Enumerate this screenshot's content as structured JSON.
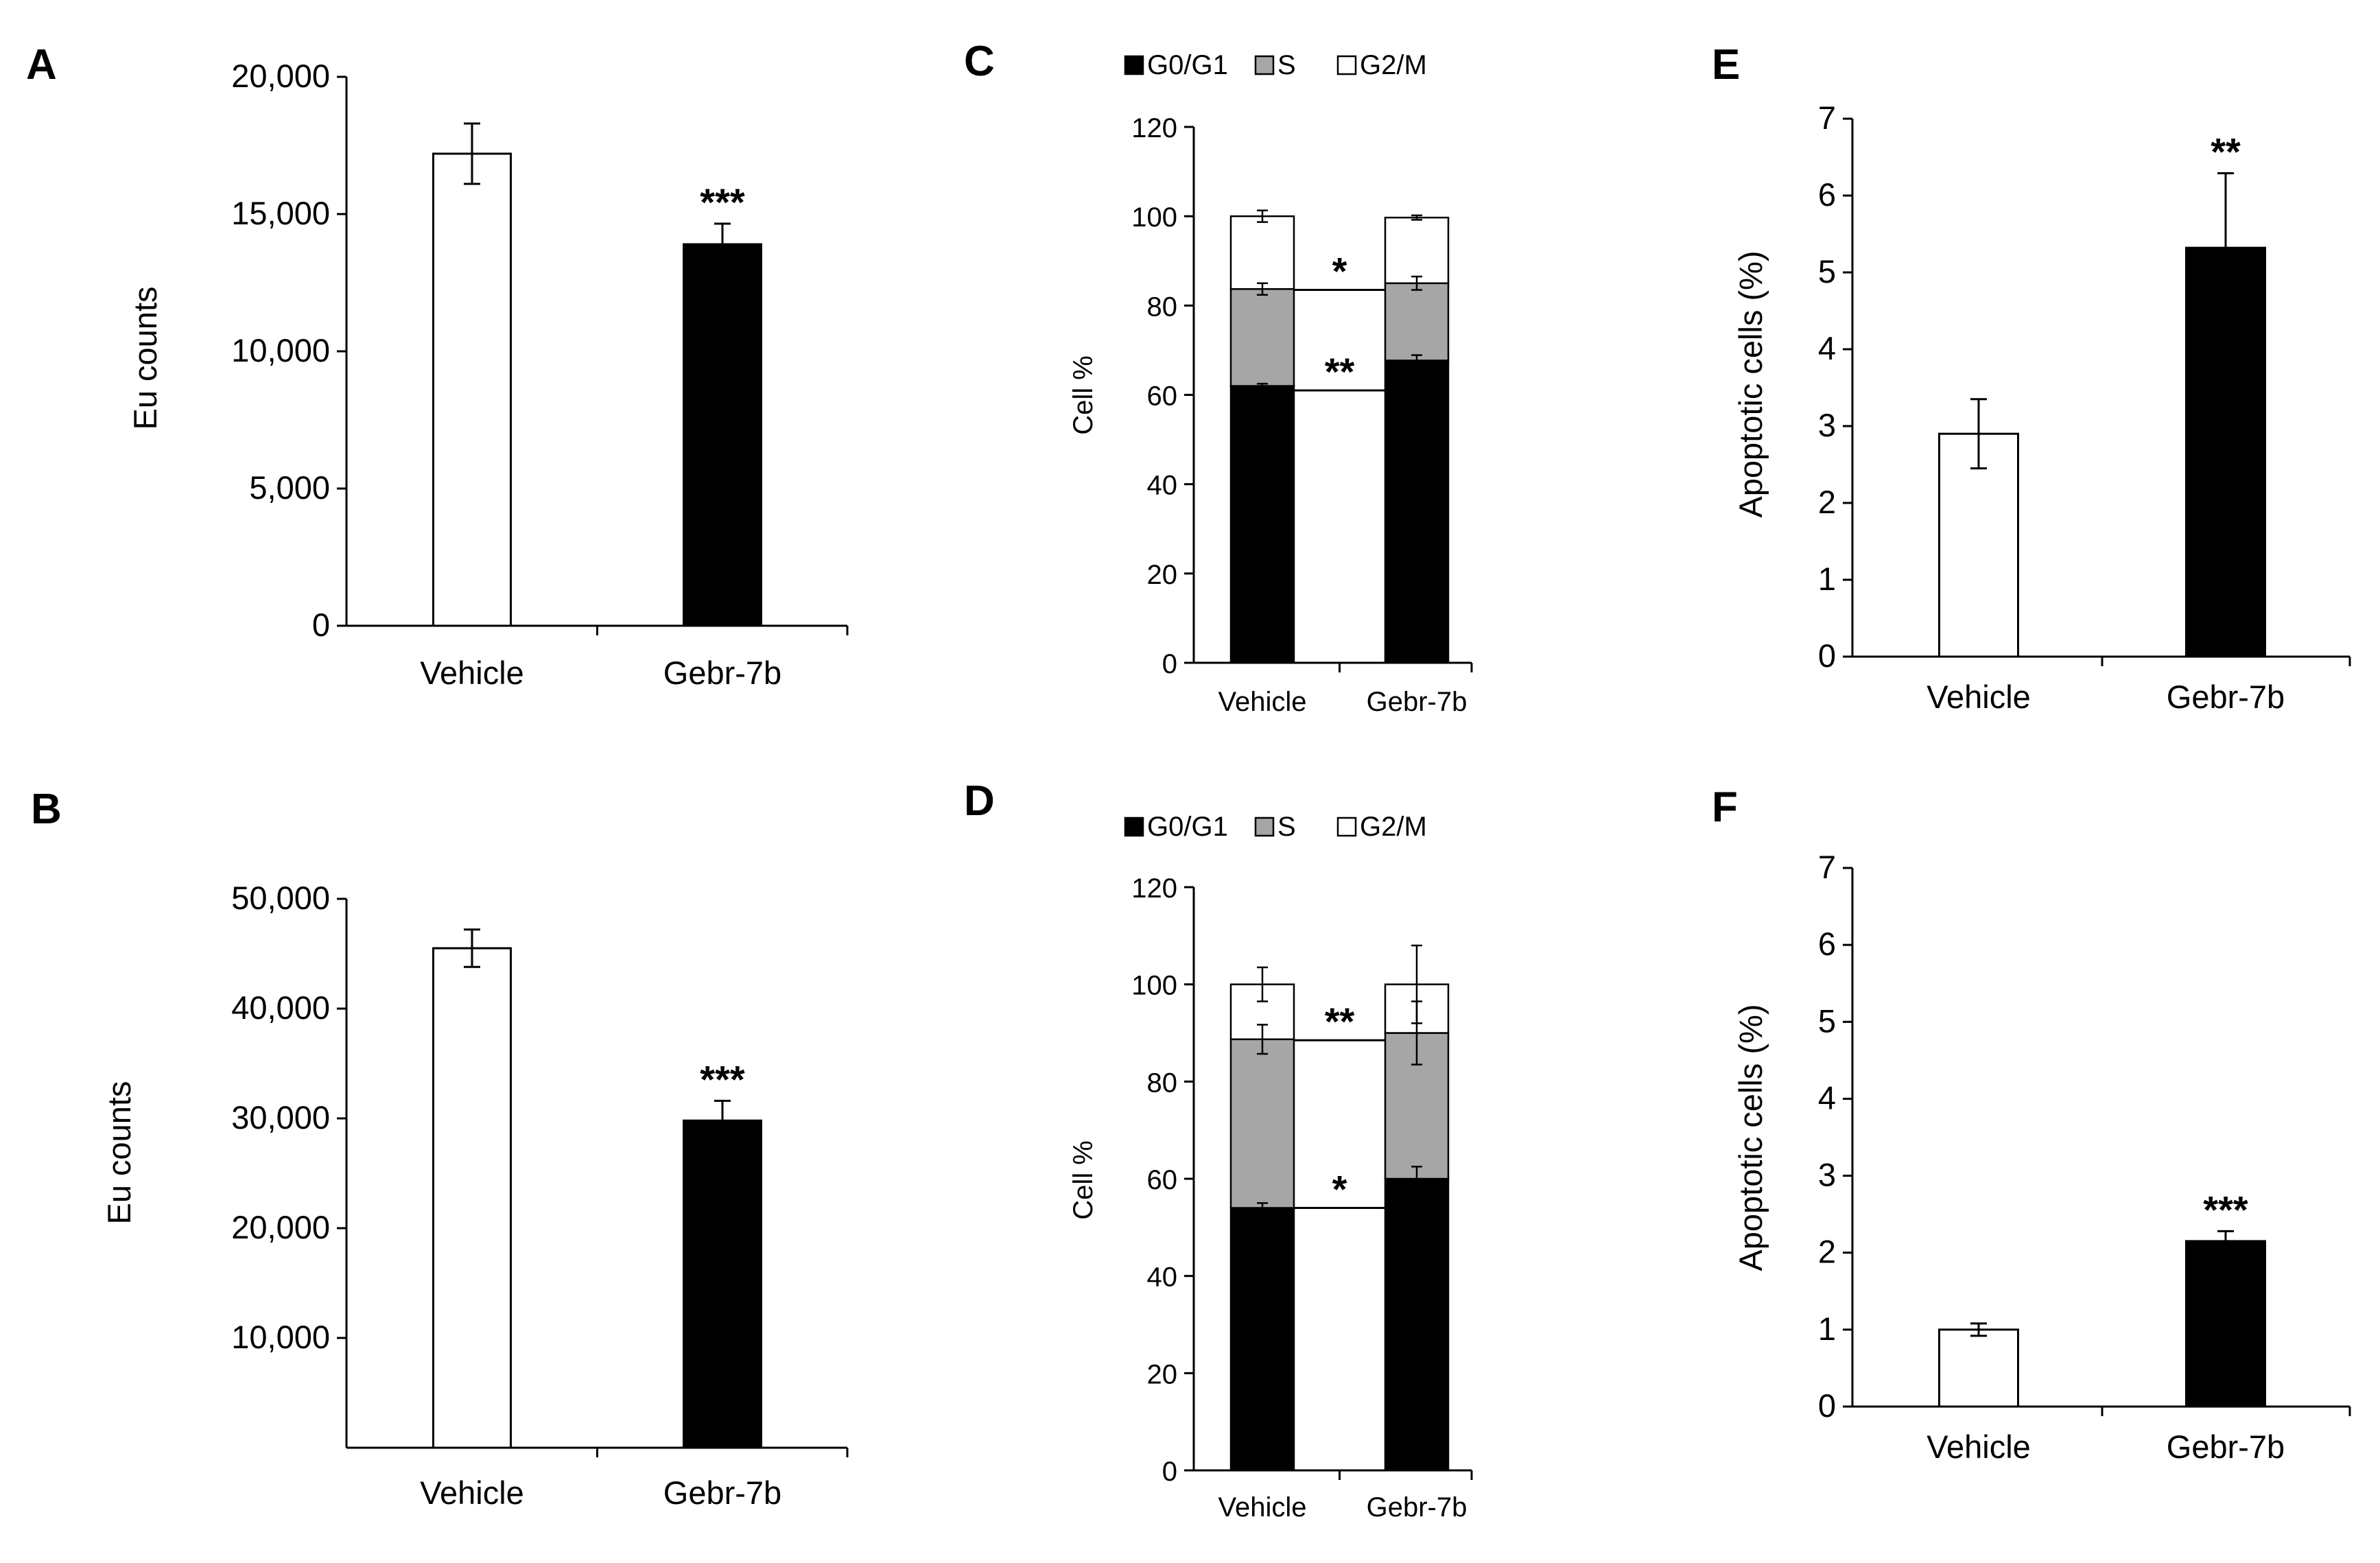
{
  "colors": {
    "control": "#ffffff",
    "treated": "#000000",
    "s_phase": "#a6a6a6",
    "axis": "#000000"
  },
  "chart_data": [
    {
      "panel": "A",
      "type": "bar",
      "categories": [
        "Vehicle",
        "Gebr-7b"
      ],
      "values": [
        17200,
        13900
      ],
      "errors": [
        1100,
        750
      ],
      "significance": [
        "",
        "***"
      ],
      "ylabel": "Eu counts",
      "ylim": [
        0,
        20000
      ],
      "ticks": [
        0,
        5000,
        10000,
        15000,
        20000
      ],
      "tick_labels": [
        "0",
        "5,000",
        "10,000",
        "15,000",
        "20,000"
      ]
    },
    {
      "panel": "B",
      "type": "bar",
      "categories": [
        "Vehicle",
        "Gebr-7b"
      ],
      "values": [
        45500,
        29800
      ],
      "errors": [
        1700,
        1800
      ],
      "significance": [
        "",
        "***"
      ],
      "ylabel": "Eu counts",
      "ylim": [
        0,
        50000
      ],
      "ticks": [
        10000,
        20000,
        30000,
        40000,
        50000
      ],
      "tick_labels": [
        "10,000",
        "20,000",
        "30,000",
        "40,000",
        "50,000"
      ]
    },
    {
      "panel": "C",
      "type": "bar",
      "stacked": true,
      "categories": [
        "Vehicle",
        "Gebr-7b"
      ],
      "series": [
        {
          "name": "G0/G1",
          "values": [
            62,
            67.7
          ],
          "errors": [
            0.5,
            1.2
          ]
        },
        {
          "name": "S",
          "values": [
            21.7,
            17.3
          ],
          "errors": [
            1.3,
            1.5
          ]
        },
        {
          "name": "G2/M",
          "values": [
            16.3,
            14.7
          ],
          "errors": [
            1.3,
            0.5
          ]
        }
      ],
      "brackets": [
        {
          "y": 83.5,
          "label": "*"
        },
        {
          "y": 61,
          "label": "**"
        }
      ],
      "ylabel": "Cell %",
      "ylim": [
        0,
        120
      ],
      "ticks": [
        0,
        20,
        40,
        60,
        80,
        100,
        120
      ],
      "tick_labels": [
        "0",
        "20",
        "40",
        "60",
        "80",
        "100",
        "120"
      ]
    },
    {
      "panel": "D",
      "type": "bar",
      "stacked": true,
      "categories": [
        "Vehicle",
        "Gebr-7b"
      ],
      "series": [
        {
          "name": "G0/G1",
          "values": [
            54,
            60
          ],
          "errors": [
            1,
            2.5
          ]
        },
        {
          "name": "S",
          "values": [
            34.7,
            30
          ],
          "errors": [
            3,
            6.5
          ]
        },
        {
          "name": "G2/M",
          "values": [
            11.3,
            10
          ],
          "errors": [
            3.5,
            8
          ]
        }
      ],
      "brackets": [
        {
          "y": 88.5,
          "label": "**"
        },
        {
          "y": 54,
          "label": "*"
        }
      ],
      "ylabel": "Cell %",
      "ylim": [
        0,
        120
      ],
      "ticks": [
        0,
        20,
        40,
        60,
        80,
        100,
        120
      ],
      "tick_labels": [
        "0",
        "20",
        "40",
        "60",
        "80",
        "100",
        "120"
      ]
    },
    {
      "panel": "E",
      "type": "bar",
      "categories": [
        "Vehicle",
        "Gebr-7b"
      ],
      "values": [
        2.9,
        5.32
      ],
      "errors": [
        0.45,
        0.97
      ],
      "significance": [
        "",
        "**"
      ],
      "ylabel": "Apoptotic cells (%)",
      "ylim": [
        0,
        7
      ],
      "ticks": [
        0,
        1,
        2,
        3,
        4,
        5,
        6,
        7
      ],
      "tick_labels": [
        "0",
        "1",
        "2",
        "3",
        "4",
        "5",
        "6",
        "7"
      ]
    },
    {
      "panel": "F",
      "type": "bar",
      "categories": [
        "Vehicle",
        "Gebr-7b"
      ],
      "values": [
        1.0,
        2.15
      ],
      "errors": [
        0.08,
        0.13
      ],
      "significance": [
        "",
        "***"
      ],
      "ylabel": "Apoptotic cells (%)",
      "ylim": [
        0,
        7
      ],
      "ticks": [
        0,
        1,
        2,
        3,
        4,
        5,
        6,
        7
      ],
      "tick_labels": [
        "0",
        "1",
        "2",
        "3",
        "4",
        "5",
        "6",
        "7"
      ]
    }
  ]
}
